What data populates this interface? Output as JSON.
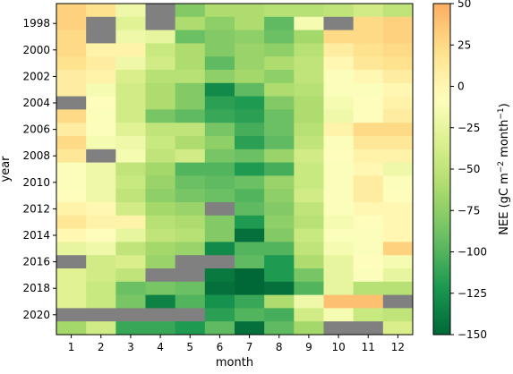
{
  "chart_data": {
    "type": "heatmap",
    "title": "",
    "xlabel": "month",
    "ylabel": "year",
    "x_categories": [
      "1",
      "2",
      "3",
      "4",
      "5",
      "6",
      "7",
      "8",
      "9",
      "10",
      "11",
      "12"
    ],
    "y_years": [
      1997,
      1998,
      1999,
      2000,
      2001,
      2002,
      2003,
      2004,
      2005,
      2006,
      2007,
      2008,
      2009,
      2010,
      2011,
      2012,
      2013,
      2014,
      2015,
      2016,
      2017,
      2018,
      2019,
      2020,
      2021
    ],
    "y_tick_labels": [
      "1998",
      "2000",
      "2002",
      "2004",
      "2006",
      "2008",
      "2010",
      "2012",
      "2014",
      "2016",
      "2018",
      "2020"
    ],
    "colorbar": {
      "label": "NEE (gC m⁻² month⁻¹)",
      "label_main": "NEE (gC m",
      "label_exp1": "−2",
      "label_mid": " month",
      "label_exp2": "−1",
      "label_end": ")",
      "range": [
        -150,
        50
      ],
      "ticks": [
        50,
        25,
        0,
        -25,
        -50,
        -75,
        -100,
        -125,
        -150
      ],
      "tick_labels": [
        "50",
        "25",
        "0",
        "−25",
        "−50",
        "−75",
        "−100",
        "−125",
        "−150"
      ],
      "colormap": "RdYlGn_r"
    },
    "missing_color": "#808080",
    "grid": false,
    "values": [
      [
        30,
        20,
        -20,
        null,
        -80,
        -60,
        -60,
        -55,
        -55,
        -50,
        -40,
        -50
      ],
      [
        30,
        null,
        -30,
        null,
        -60,
        -75,
        -60,
        -95,
        -15,
        null,
        25,
        30
      ],
      [
        25,
        null,
        -20,
        -25,
        -90,
        -80,
        -75,
        -90,
        -65,
        25,
        25,
        30
      ],
      [
        25,
        5,
        5,
        -45,
        -60,
        -80,
        -70,
        -75,
        -55,
        10,
        20,
        25
      ],
      [
        20,
        10,
        -20,
        -40,
        -60,
        -95,
        -70,
        -60,
        -50,
        0,
        15,
        20
      ],
      [
        10,
        5,
        -35,
        -55,
        -55,
        -75,
        -65,
        -75,
        -50,
        -10,
        0,
        10
      ],
      [
        10,
        -15,
        -40,
        -60,
        -80,
        -130,
        -95,
        -60,
        -55,
        -10,
        -10,
        0
      ],
      [
        null,
        -5,
        -40,
        -60,
        -80,
        -115,
        -120,
        -80,
        -60,
        -15,
        -5,
        5
      ],
      [
        25,
        -10,
        -40,
        -85,
        -95,
        -110,
        -115,
        -90,
        -60,
        -20,
        -5,
        10
      ],
      [
        10,
        -10,
        -30,
        -50,
        -50,
        -85,
        -105,
        -90,
        -55,
        5,
        25,
        25
      ],
      [
        25,
        -15,
        -20,
        -45,
        -60,
        -75,
        -115,
        -95,
        -50,
        -10,
        15,
        15
      ],
      [
        15,
        null,
        -15,
        -50,
        -40,
        -85,
        -90,
        -70,
        -40,
        -5,
        5,
        5
      ],
      [
        -10,
        -20,
        -50,
        -65,
        -100,
        -100,
        -120,
        -105,
        -45,
        -10,
        0,
        -20
      ],
      [
        -10,
        -20,
        -45,
        -70,
        -90,
        -95,
        -90,
        -70,
        -45,
        -10,
        10,
        -10
      ],
      [
        -5,
        -20,
        -50,
        -75,
        -85,
        -90,
        -100,
        -75,
        -40,
        -10,
        10,
        -5
      ],
      [
        5,
        0,
        -40,
        -65,
        -70,
        null,
        -95,
        -80,
        -50,
        -10,
        0,
        0
      ],
      [
        15,
        5,
        5,
        -55,
        -60,
        -80,
        -120,
        -75,
        -55,
        -15,
        -5,
        0
      ],
      [
        0,
        -5,
        -25,
        -50,
        -55,
        -80,
        -145,
        -80,
        -45,
        -10,
        -10,
        0
      ],
      [
        -25,
        -20,
        -50,
        -65,
        -70,
        -130,
        -100,
        -100,
        -50,
        -15,
        -10,
        30
      ],
      [
        null,
        -40,
        -35,
        -70,
        null,
        null,
        -95,
        -120,
        -60,
        -25,
        -5,
        -15
      ],
      [
        -30,
        -40,
        -50,
        null,
        null,
        -140,
        -150,
        -120,
        -85,
        -25,
        -10,
        -25
      ],
      [
        -30,
        -45,
        -90,
        -85,
        -90,
        -145,
        -150,
        -145,
        -100,
        -25,
        -55,
        -55
      ],
      [
        -30,
        -45,
        -85,
        -135,
        -100,
        -125,
        -110,
        -60,
        -20,
        40,
        40,
        null
      ],
      [
        null,
        null,
        null,
        null,
        null,
        -115,
        -100,
        -105,
        -40,
        -15,
        -45,
        -50
      ],
      [
        -65,
        -40,
        -110,
        -110,
        -120,
        -95,
        -145,
        -95,
        -65,
        null,
        null,
        -35
      ]
    ]
  }
}
